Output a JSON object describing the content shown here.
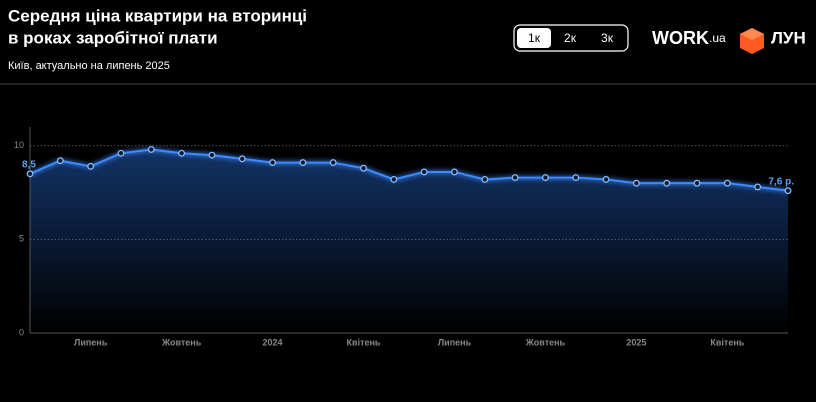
{
  "header": {
    "title_lines": [
      "Середня ціна квартири на вторинці",
      "в роках заробітної плати"
    ],
    "subtitle": "Київ, актуально на липень 2025"
  },
  "buttons": {
    "items": [
      "1к",
      "2к",
      "3к"
    ],
    "selected": 0
  },
  "logos": {
    "work": {
      "main": "WORK",
      "suffix": ".ua"
    },
    "lun": "ЛУН"
  },
  "chart_data": {
    "type": "line",
    "categories": [
      null,
      null,
      "Липень",
      null,
      null,
      "Жовтень",
      null,
      null,
      "2024",
      null,
      null,
      "Квітень",
      null,
      null,
      "Липень",
      null,
      null,
      "Жовтень",
      null,
      null,
      "2025",
      null,
      null,
      "Квітень",
      null,
      null
    ],
    "values": [
      8.5,
      9.2,
      8.9,
      9.6,
      9.8,
      9.6,
      9.5,
      9.3,
      9.1,
      9.1,
      9.1,
      8.8,
      8.2,
      8.6,
      8.6,
      8.2,
      8.3,
      8.3,
      8.3,
      8.2,
      8.0,
      8.0,
      8.0,
      8.0,
      7.8,
      7.6
    ],
    "value_labels": [
      "8,5",
      null,
      null,
      null,
      null,
      null,
      null,
      null,
      null,
      null,
      null,
      null,
      null,
      null,
      null,
      null,
      null,
      null,
      null,
      null,
      null,
      null,
      null,
      null,
      null,
      "7,6 р."
    ],
    "color": "#3d8bff",
    "ylim": [
      0,
      11
    ],
    "yticks": [
      0,
      5,
      10
    ],
    "grid": true
  }
}
